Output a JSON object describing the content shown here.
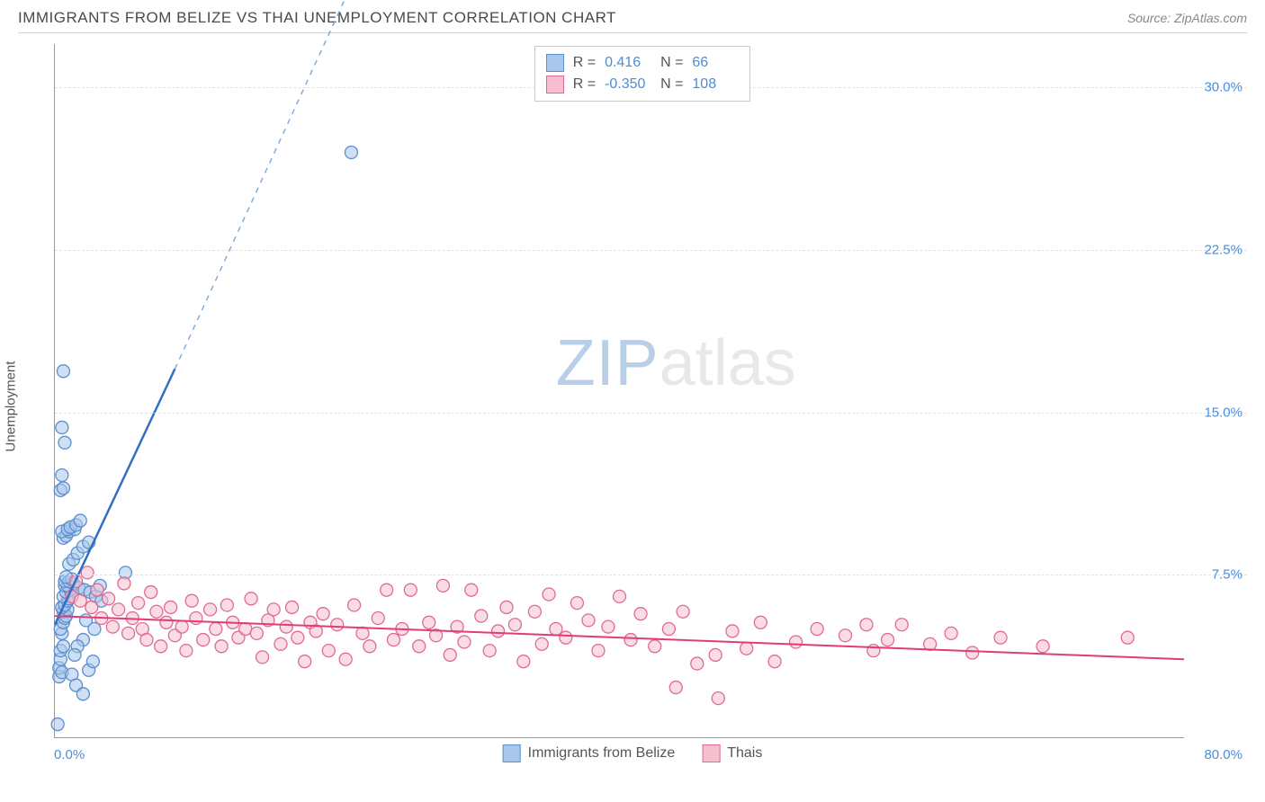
{
  "header": {
    "title": "IMMIGRANTS FROM BELIZE VS THAI UNEMPLOYMENT CORRELATION CHART",
    "source_label": "Source: ",
    "source_name": "ZipAtlas.com"
  },
  "chart": {
    "type": "scatter",
    "ylabel": "Unemployment",
    "xlim": [
      0,
      80
    ],
    "ylim": [
      0,
      32
    ],
    "x_ticks": {
      "min_label": "0.0%",
      "max_label": "80.0%"
    },
    "y_ticks": [
      {
        "value": 7.5,
        "label": "7.5%"
      },
      {
        "value": 15.0,
        "label": "15.0%"
      },
      {
        "value": 22.5,
        "label": "22.5%"
      },
      {
        "value": 30.0,
        "label": "30.0%"
      }
    ],
    "background_color": "#ffffff",
    "grid_color": "#e2e2e2",
    "axis_color": "#9a9a9a",
    "tick_label_color": "#4a8ddb",
    "watermark": {
      "part1": "ZIP",
      "part2": "atlas",
      "color1": "#b9cfe8",
      "color2": "#e8e8e8",
      "fontsize": 72
    },
    "series": [
      {
        "name": "Immigrants from Belize",
        "legend_label": "Immigrants from Belize",
        "marker_color_fill": "#a9c7eb",
        "marker_color_stroke": "#5b8fd0",
        "marker_radius": 7,
        "fill_opacity": 0.55,
        "line_color": "#2f6fc4",
        "line_width": 2.5,
        "dash_extension_color": "#7ba6da",
        "stats": {
          "R_label": "R =",
          "R_value": "0.416",
          "N_label": "N =",
          "N_value": "66"
        },
        "trend": {
          "x1": 0,
          "y1": 5.2,
          "x2": 8.5,
          "y2": 17.0,
          "dash_x2": 20.5,
          "dash_y2": 34.0
        },
        "points": [
          [
            0.2,
            0.6
          ],
          [
            0.3,
            2.8
          ],
          [
            0.3,
            3.2
          ],
          [
            0.4,
            3.6
          ],
          [
            0.5,
            3.0
          ],
          [
            0.4,
            4.0
          ],
          [
            0.6,
            4.2
          ],
          [
            0.5,
            4.8
          ],
          [
            0.4,
            5.0
          ],
          [
            0.6,
            5.3
          ],
          [
            0.7,
            5.5
          ],
          [
            0.6,
            5.8
          ],
          [
            0.8,
            5.6
          ],
          [
            0.9,
            5.9
          ],
          [
            0.5,
            6.0
          ],
          [
            0.7,
            6.1
          ],
          [
            0.9,
            6.3
          ],
          [
            1.0,
            6.4
          ],
          [
            0.6,
            6.5
          ],
          [
            0.8,
            6.7
          ],
          [
            1.1,
            6.8
          ],
          [
            0.7,
            7.0
          ],
          [
            0.9,
            7.0
          ],
          [
            1.3,
            7.1
          ],
          [
            0.7,
            7.2
          ],
          [
            1.0,
            7.2
          ],
          [
            1.2,
            7.3
          ],
          [
            0.8,
            7.4
          ],
          [
            0.6,
            9.2
          ],
          [
            0.8,
            9.3
          ],
          [
            1.0,
            9.5
          ],
          [
            1.4,
            9.6
          ],
          [
            0.5,
            9.5
          ],
          [
            0.9,
            9.6
          ],
          [
            1.1,
            9.7
          ],
          [
            1.5,
            9.8
          ],
          [
            1.8,
            10.0
          ],
          [
            1.7,
            6.9
          ],
          [
            2.1,
            6.8
          ],
          [
            2.5,
            6.7
          ],
          [
            2.9,
            6.5
          ],
          [
            3.3,
            6.3
          ],
          [
            3.2,
            7.0
          ],
          [
            5.0,
            7.6
          ],
          [
            2.2,
            5.4
          ],
          [
            2.8,
            5.0
          ],
          [
            2.0,
            4.5
          ],
          [
            1.6,
            4.2
          ],
          [
            1.4,
            3.8
          ],
          [
            1.2,
            2.9
          ],
          [
            1.5,
            2.4
          ],
          [
            2.0,
            2.0
          ],
          [
            2.4,
            3.1
          ],
          [
            2.7,
            3.5
          ],
          [
            0.4,
            11.4
          ],
          [
            0.6,
            11.5
          ],
          [
            0.5,
            12.1
          ],
          [
            0.7,
            13.6
          ],
          [
            0.5,
            14.3
          ],
          [
            0.6,
            16.9
          ],
          [
            1.0,
            8.0
          ],
          [
            1.3,
            8.2
          ],
          [
            1.6,
            8.5
          ],
          [
            2.0,
            8.8
          ],
          [
            2.4,
            9.0
          ],
          [
            21.0,
            27.0
          ]
        ]
      },
      {
        "name": "Thais",
        "legend_label": "Thais",
        "marker_color_fill": "#f6bfcf",
        "marker_color_stroke": "#e06b8f",
        "marker_radius": 7,
        "fill_opacity": 0.55,
        "line_color": "#e23d73",
        "line_width": 2,
        "stats": {
          "R_label": "R =",
          "R_value": "-0.350",
          "N_label": "N =",
          "N_value": "108"
        },
        "trend": {
          "x1": 0,
          "y1": 5.6,
          "x2": 80,
          "y2": 3.6
        },
        "points": [
          [
            1.2,
            6.5
          ],
          [
            1.8,
            6.3
          ],
          [
            2.3,
            7.6
          ],
          [
            2.6,
            6.0
          ],
          [
            3.0,
            6.8
          ],
          [
            3.3,
            5.5
          ],
          [
            3.8,
            6.4
          ],
          [
            4.1,
            5.1
          ],
          [
            4.5,
            5.9
          ],
          [
            4.9,
            7.1
          ],
          [
            5.2,
            4.8
          ],
          [
            5.5,
            5.5
          ],
          [
            5.9,
            6.2
          ],
          [
            6.2,
            5.0
          ],
          [
            6.5,
            4.5
          ],
          [
            6.8,
            6.7
          ],
          [
            7.2,
            5.8
          ],
          [
            7.5,
            4.2
          ],
          [
            7.9,
            5.3
          ],
          [
            8.2,
            6.0
          ],
          [
            8.5,
            4.7
          ],
          [
            9.0,
            5.1
          ],
          [
            9.3,
            4.0
          ],
          [
            9.7,
            6.3
          ],
          [
            10.0,
            5.5
          ],
          [
            10.5,
            4.5
          ],
          [
            11.0,
            5.9
          ],
          [
            11.4,
            5.0
          ],
          [
            11.8,
            4.2
          ],
          [
            12.2,
            6.1
          ],
          [
            12.6,
            5.3
          ],
          [
            13.0,
            4.6
          ],
          [
            13.5,
            5.0
          ],
          [
            13.9,
            6.4
          ],
          [
            14.3,
            4.8
          ],
          [
            14.7,
            3.7
          ],
          [
            15.1,
            5.4
          ],
          [
            15.5,
            5.9
          ],
          [
            16.0,
            4.3
          ],
          [
            16.4,
            5.1
          ],
          [
            16.8,
            6.0
          ],
          [
            17.2,
            4.6
          ],
          [
            17.7,
            3.5
          ],
          [
            18.1,
            5.3
          ],
          [
            18.5,
            4.9
          ],
          [
            19.0,
            5.7
          ],
          [
            19.4,
            4.0
          ],
          [
            20.0,
            5.2
          ],
          [
            20.6,
            3.6
          ],
          [
            21.2,
            6.1
          ],
          [
            21.8,
            4.8
          ],
          [
            22.3,
            4.2
          ],
          [
            22.9,
            5.5
          ],
          [
            23.5,
            6.8
          ],
          [
            24.0,
            4.5
          ],
          [
            24.6,
            5.0
          ],
          [
            25.2,
            6.8
          ],
          [
            25.8,
            4.2
          ],
          [
            26.5,
            5.3
          ],
          [
            27.0,
            4.7
          ],
          [
            27.5,
            7.0
          ],
          [
            28.0,
            3.8
          ],
          [
            28.5,
            5.1
          ],
          [
            29.0,
            4.4
          ],
          [
            29.5,
            6.8
          ],
          [
            30.2,
            5.6
          ],
          [
            30.8,
            4.0
          ],
          [
            31.4,
            4.9
          ],
          [
            32.0,
            6.0
          ],
          [
            32.6,
            5.2
          ],
          [
            33.2,
            3.5
          ],
          [
            34.0,
            5.8
          ],
          [
            34.5,
            4.3
          ],
          [
            35.0,
            6.6
          ],
          [
            35.5,
            5.0
          ],
          [
            36.2,
            4.6
          ],
          [
            37.0,
            6.2
          ],
          [
            37.8,
            5.4
          ],
          [
            38.5,
            4.0
          ],
          [
            39.2,
            5.1
          ],
          [
            40.0,
            6.5
          ],
          [
            40.8,
            4.5
          ],
          [
            41.5,
            5.7
          ],
          [
            42.5,
            4.2
          ],
          [
            43.5,
            5.0
          ],
          [
            44.5,
            5.8
          ],
          [
            45.5,
            3.4
          ],
          [
            46.8,
            3.8
          ],
          [
            48.0,
            4.9
          ],
          [
            49.0,
            4.1
          ],
          [
            50.0,
            5.3
          ],
          [
            51.0,
            3.5
          ],
          [
            52.5,
            4.4
          ],
          [
            54.0,
            5.0
          ],
          [
            44.0,
            2.3
          ],
          [
            47.0,
            1.8
          ],
          [
            56.0,
            4.7
          ],
          [
            58.0,
            4.0
          ],
          [
            60.0,
            5.2
          ],
          [
            62.0,
            4.3
          ],
          [
            57.5,
            5.2
          ],
          [
            59.0,
            4.5
          ],
          [
            63.5,
            4.8
          ],
          [
            65.0,
            3.9
          ],
          [
            67.0,
            4.6
          ],
          [
            70.0,
            4.2
          ],
          [
            76.0,
            4.6
          ],
          [
            1.5,
            7.2
          ]
        ]
      }
    ]
  },
  "legend_bottom": {
    "series1_label": "Immigrants from Belize",
    "series2_label": "Thais"
  }
}
